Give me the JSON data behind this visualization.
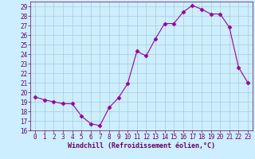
{
  "x": [
    0,
    1,
    2,
    3,
    4,
    5,
    6,
    7,
    8,
    9,
    10,
    11,
    12,
    13,
    14,
    15,
    16,
    17,
    18,
    19,
    20,
    21,
    22,
    23
  ],
  "y": [
    19.5,
    19.2,
    19.0,
    18.8,
    18.8,
    17.5,
    16.7,
    16.5,
    18.4,
    19.4,
    20.9,
    24.3,
    23.8,
    25.6,
    27.2,
    27.2,
    28.4,
    29.1,
    28.7,
    28.2,
    28.2,
    26.8,
    22.6,
    21.0
  ],
  "line_color": "#990099",
  "marker": "D",
  "marker_size": 2.5,
  "bg_color": "#cceeff",
  "grid_color": "#aacccc",
  "xlabel": "Windchill (Refroidissement éolien,°C)",
  "ylim": [
    16,
    29.5
  ],
  "xlim": [
    -0.5,
    23.5
  ],
  "yticks": [
    16,
    17,
    18,
    19,
    20,
    21,
    22,
    23,
    24,
    25,
    26,
    27,
    28,
    29
  ],
  "xticks": [
    0,
    1,
    2,
    3,
    4,
    5,
    6,
    7,
    8,
    9,
    10,
    11,
    12,
    13,
    14,
    15,
    16,
    17,
    18,
    19,
    20,
    21,
    22,
    23
  ],
  "tick_color": "#660066",
  "label_color": "#660066",
  "xlabel_fontsize": 6.0,
  "tick_fontsize": 5.5
}
